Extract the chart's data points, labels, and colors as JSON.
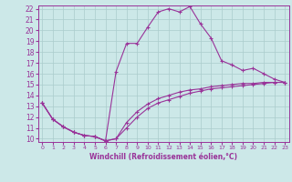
{
  "xlabel": "Windchill (Refroidissement éolien,°C)",
  "bg_color": "#cce8e8",
  "line_color": "#993399",
  "grid_color": "#aacccc",
  "xmin": 0,
  "xmax": 23,
  "ymin": 10,
  "ymax": 22,
  "series1_x": [
    0,
    1,
    2,
    3,
    4,
    5,
    6,
    7,
    8,
    9,
    10,
    11,
    12,
    13,
    14,
    15,
    16,
    17,
    18,
    19,
    20,
    21,
    22,
    23
  ],
  "series1_y": [
    13.3,
    11.8,
    11.1,
    10.6,
    10.3,
    10.2,
    9.8,
    16.2,
    18.8,
    18.8,
    20.3,
    21.7,
    22.0,
    21.7,
    22.2,
    20.6,
    19.3,
    17.2,
    16.8,
    16.3,
    16.5,
    16.0,
    15.5,
    15.2
  ],
  "series2_x": [
    0,
    1,
    2,
    3,
    4,
    5,
    6,
    7,
    8,
    9,
    10,
    11,
    12,
    13,
    14,
    15,
    16,
    17,
    18,
    19,
    20,
    21,
    22,
    23
  ],
  "series2_y": [
    13.3,
    11.8,
    11.1,
    10.6,
    10.3,
    10.2,
    9.8,
    10.0,
    11.0,
    12.0,
    12.8,
    13.3,
    13.6,
    13.9,
    14.2,
    14.4,
    14.6,
    14.7,
    14.8,
    14.9,
    15.0,
    15.1,
    15.2,
    15.2
  ],
  "series3_x": [
    0,
    1,
    2,
    3,
    4,
    5,
    6,
    7,
    8,
    9,
    10,
    11,
    12,
    13,
    14,
    15,
    16,
    17,
    18,
    19,
    20,
    21,
    22,
    23
  ],
  "series3_y": [
    13.3,
    11.8,
    11.1,
    10.6,
    10.3,
    10.2,
    9.8,
    10.0,
    11.5,
    12.5,
    13.2,
    13.7,
    14.0,
    14.3,
    14.5,
    14.6,
    14.8,
    14.9,
    15.0,
    15.1,
    15.1,
    15.2,
    15.2,
    15.2
  ],
  "ytick_labels": [
    "10",
    "11",
    "12",
    "13",
    "14",
    "15",
    "16",
    "17",
    "18",
    "19",
    "20",
    "21",
    "22"
  ]
}
